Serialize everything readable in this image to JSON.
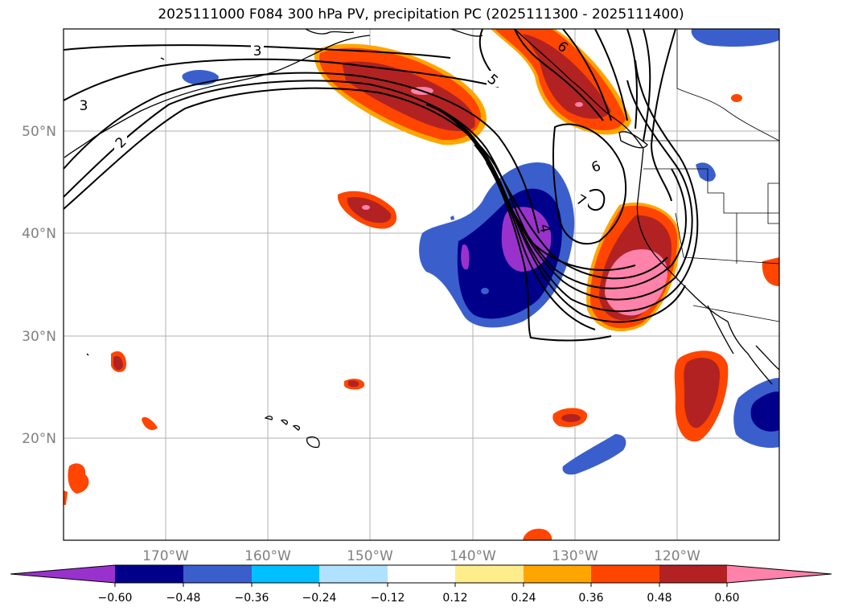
{
  "title": "2025111000 F084 300 hPa PV, precipitation PC (2025111300 - 2025111400)",
  "map": {
    "lon_range": [
      -180,
      -110
    ],
    "lat_range": [
      10,
      60
    ],
    "lon_ticks": [
      {
        "value": -170,
        "label": "170°W"
      },
      {
        "value": -160,
        "label": "160°W"
      },
      {
        "value": -150,
        "label": "150°W"
      },
      {
        "value": -140,
        "label": "140°W"
      },
      {
        "value": -130,
        "label": "130°W"
      },
      {
        "value": -120,
        "label": "120°W"
      }
    ],
    "lat_ticks": [
      {
        "value": 50,
        "label": "50°N"
      },
      {
        "value": 40,
        "label": "40°N"
      },
      {
        "value": 30,
        "label": "30°N"
      },
      {
        "value": 20,
        "label": "20°N"
      }
    ],
    "grid": true
  },
  "pv_contour_labels": [
    "3",
    "3",
    "2",
    "5",
    "6",
    "6",
    "7",
    "4"
  ],
  "colorbar": {
    "tick_labels": [
      "−0.60",
      "−0.48",
      "−0.36",
      "−0.24",
      "−0.12",
      "0.12",
      "0.24",
      "0.36",
      "0.48",
      "0.60"
    ],
    "colors": {
      "lt_-0.60": "#9932cc",
      "-0.60_-0.48": "#00008b",
      "-0.48_-0.36": "#3a5fcd",
      "-0.36_-0.24": "#00bfff",
      "-0.24_-0.12": "#b0e2ff",
      "-0.12_0.12": "#ffffff",
      "0.12_0.24": "#ffec8b",
      "0.24_0.36": "#ffa500",
      "0.36_0.48": "#ff4500",
      "0.48_0.60": "#b22222",
      "gt_0.60": "#ff82ab"
    }
  }
}
